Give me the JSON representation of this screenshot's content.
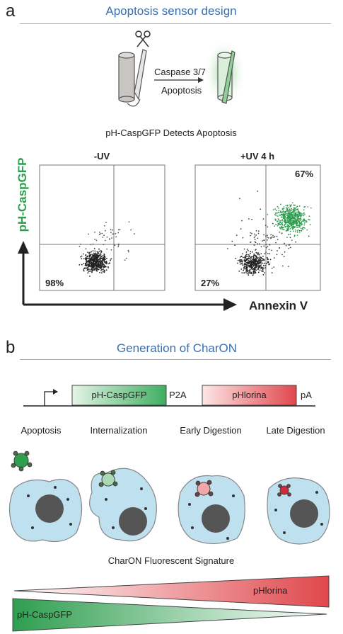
{
  "panel_a": {
    "letter": "a",
    "title": "Apoptosis sensor design",
    "arrow_label_top": "Caspase 3/7",
    "arrow_label_bottom": "Apoptosis",
    "caption": "pH-CaspGFP Detects Apoptosis",
    "y_axis_label": "pH-CaspGFP",
    "x_axis_label": "Annexin V",
    "plots": [
      {
        "title": "-UV",
        "pct_top_right": "",
        "pct_bottom_left": "98%"
      },
      {
        "title": "+UV 4 h",
        "pct_top_right": "67%",
        "pct_bottom_left": "27%"
      }
    ]
  },
  "panel_b": {
    "letter": "b",
    "title": "Generation of CharON",
    "construct": {
      "gene1": "pH-CaspGFP",
      "linker": "P2A",
      "gene2": "pHlorina",
      "polyA": "pA"
    },
    "stages": [
      "Apoptosis",
      "Internalization",
      "Early Digestion",
      "Late Digestion"
    ],
    "signature_caption": "CharON Fluorescent Signature",
    "gradient_top_label": "pHlorina",
    "gradient_bottom_label": "pH-CaspGFP"
  },
  "colors": {
    "accent_blue": "#3a6fb0",
    "green": "#2e9e4f",
    "red": "#e0474c",
    "cell_fill": "#bfe0ef"
  }
}
